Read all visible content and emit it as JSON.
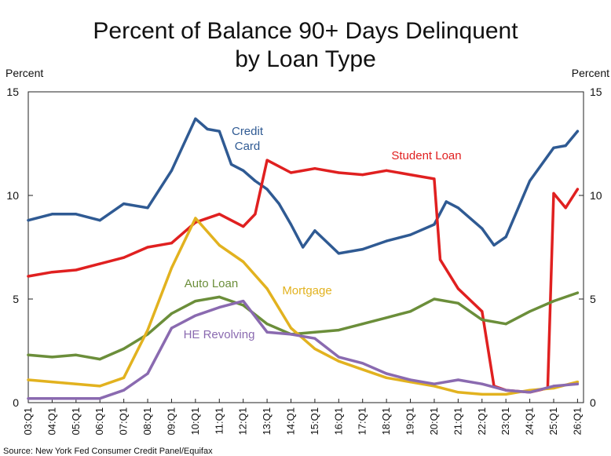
{
  "chart_data": {
    "type": "line",
    "title_lines": [
      "Percent of Balance 90+ Days Delinquent",
      "by Loan Type"
    ],
    "ylabel_left": "Percent",
    "ylabel_right": "Percent",
    "ylim": [
      0,
      15
    ],
    "yticks": [
      0,
      5,
      10,
      15
    ],
    "xlim": [
      "03:Q1",
      "26:Q2"
    ],
    "xticks": [
      "03:Q1",
      "04:Q1",
      "05:Q1",
      "06:Q1",
      "07:Q1",
      "08:Q1",
      "09:Q1",
      "10:Q1",
      "11:Q1",
      "12:Q1",
      "13:Q1",
      "14:Q1",
      "15:Q1",
      "16:Q1",
      "17:Q1",
      "18:Q1",
      "19:Q1",
      "20:Q1",
      "21:Q1",
      "22:Q1",
      "23:Q1",
      "24:Q1",
      "25:Q1",
      "26:Q1"
    ],
    "grid": false,
    "source": "Source: New York Fed Consumer Credit Panel/Equifax",
    "series": [
      {
        "name": "Credit Card",
        "label_lines": [
          "Credit",
          "Card"
        ],
        "color": "#2f5a93",
        "points": [
          [
            "03:Q1",
            8.8
          ],
          [
            "04:Q1",
            9.1
          ],
          [
            "05:Q1",
            9.1
          ],
          [
            "06:Q1",
            8.8
          ],
          [
            "07:Q1",
            9.6
          ],
          [
            "08:Q1",
            9.4
          ],
          [
            "09:Q1",
            11.2
          ],
          [
            "10:Q1",
            13.7
          ],
          [
            "10:Q3",
            13.2
          ],
          [
            "11:Q1",
            13.1
          ],
          [
            "11:Q3",
            11.5
          ],
          [
            "12:Q1",
            11.2
          ],
          [
            "12:Q3",
            10.7
          ],
          [
            "13:Q1",
            10.3
          ],
          [
            "13:Q3",
            9.6
          ],
          [
            "14:Q1",
            8.6
          ],
          [
            "14:Q3",
            7.5
          ],
          [
            "15:Q1",
            8.3
          ],
          [
            "16:Q1",
            7.2
          ],
          [
            "17:Q1",
            7.4
          ],
          [
            "18:Q1",
            7.8
          ],
          [
            "19:Q1",
            8.1
          ],
          [
            "20:Q1",
            8.6
          ],
          [
            "20:Q3",
            9.7
          ],
          [
            "21:Q1",
            9.4
          ],
          [
            "22:Q1",
            8.4
          ],
          [
            "22:Q3",
            7.6
          ],
          [
            "23:Q1",
            8.0
          ],
          [
            "24:Q1",
            10.7
          ],
          [
            "25:Q1",
            12.3
          ],
          [
            "25:Q3",
            12.4
          ],
          [
            "26:Q1",
            13.1
          ]
        ]
      },
      {
        "name": "Student Loan",
        "label_lines": [
          "Student Loan"
        ],
        "color": "#e02020",
        "points": [
          [
            "03:Q1",
            6.1
          ],
          [
            "04:Q1",
            6.3
          ],
          [
            "05:Q1",
            6.4
          ],
          [
            "06:Q1",
            6.7
          ],
          [
            "07:Q1",
            7.0
          ],
          [
            "08:Q1",
            7.5
          ],
          [
            "09:Q1",
            7.7
          ],
          [
            "10:Q1",
            8.7
          ],
          [
            "11:Q1",
            9.1
          ],
          [
            "12:Q1",
            8.5
          ],
          [
            "12:Q3",
            9.1
          ],
          [
            "13:Q1",
            11.7
          ],
          [
            "14:Q1",
            11.1
          ],
          [
            "15:Q1",
            11.3
          ],
          [
            "16:Q1",
            11.1
          ],
          [
            "17:Q1",
            11.0
          ],
          [
            "18:Q1",
            11.2
          ],
          [
            "19:Q1",
            11.0
          ],
          [
            "20:Q1",
            10.8
          ],
          [
            "20:Q2",
            6.9
          ],
          [
            "21:Q1",
            5.5
          ],
          [
            "22:Q1",
            4.4
          ],
          [
            "22:Q3",
            0.8
          ],
          [
            "23:Q1",
            0.6
          ],
          [
            "24:Q1",
            0.5
          ],
          [
            "24:Q4",
            0.7
          ],
          [
            "25:Q1",
            10.1
          ],
          [
            "25:Q3",
            9.4
          ],
          [
            "26:Q1",
            10.3
          ]
        ]
      },
      {
        "name": "Auto Loan",
        "label_lines": [
          "Auto Loan"
        ],
        "color": "#6b8e3a",
        "points": [
          [
            "03:Q1",
            2.3
          ],
          [
            "04:Q1",
            2.2
          ],
          [
            "05:Q1",
            2.3
          ],
          [
            "06:Q1",
            2.1
          ],
          [
            "07:Q1",
            2.6
          ],
          [
            "08:Q1",
            3.3
          ],
          [
            "09:Q1",
            4.3
          ],
          [
            "10:Q1",
            4.9
          ],
          [
            "11:Q1",
            5.1
          ],
          [
            "12:Q1",
            4.7
          ],
          [
            "13:Q1",
            3.8
          ],
          [
            "14:Q1",
            3.3
          ],
          [
            "15:Q1",
            3.4
          ],
          [
            "16:Q1",
            3.5
          ],
          [
            "17:Q1",
            3.8
          ],
          [
            "18:Q1",
            4.1
          ],
          [
            "19:Q1",
            4.4
          ],
          [
            "20:Q1",
            5.0
          ],
          [
            "21:Q1",
            4.8
          ],
          [
            "22:Q1",
            4.0
          ],
          [
            "23:Q1",
            3.8
          ],
          [
            "24:Q1",
            4.4
          ],
          [
            "25:Q1",
            4.9
          ],
          [
            "26:Q1",
            5.3
          ]
        ]
      },
      {
        "name": "Mortgage",
        "label_lines": [
          "Mortgage"
        ],
        "color": "#e2b21f",
        "points": [
          [
            "03:Q1",
            1.1
          ],
          [
            "04:Q1",
            1.0
          ],
          [
            "05:Q1",
            0.9
          ],
          [
            "06:Q1",
            0.8
          ],
          [
            "07:Q1",
            1.2
          ],
          [
            "08:Q1",
            3.5
          ],
          [
            "09:Q1",
            6.5
          ],
          [
            "10:Q1",
            8.9
          ],
          [
            "11:Q1",
            7.6
          ],
          [
            "12:Q1",
            6.8
          ],
          [
            "13:Q1",
            5.5
          ],
          [
            "14:Q1",
            3.6
          ],
          [
            "15:Q1",
            2.6
          ],
          [
            "16:Q1",
            2.0
          ],
          [
            "17:Q1",
            1.6
          ],
          [
            "18:Q1",
            1.2
          ],
          [
            "19:Q1",
            1.0
          ],
          [
            "20:Q1",
            0.8
          ],
          [
            "21:Q1",
            0.5
          ],
          [
            "22:Q1",
            0.4
          ],
          [
            "23:Q1",
            0.4
          ],
          [
            "24:Q1",
            0.6
          ],
          [
            "25:Q1",
            0.7
          ],
          [
            "26:Q1",
            1.0
          ]
        ]
      },
      {
        "name": "HE Revolving",
        "label_lines": [
          "HE Revolving"
        ],
        "color": "#8a6ab0",
        "points": [
          [
            "03:Q1",
            0.2
          ],
          [
            "04:Q1",
            0.2
          ],
          [
            "05:Q1",
            0.2
          ],
          [
            "06:Q1",
            0.2
          ],
          [
            "07:Q1",
            0.6
          ],
          [
            "08:Q1",
            1.4
          ],
          [
            "09:Q1",
            3.6
          ],
          [
            "10:Q1",
            4.2
          ],
          [
            "11:Q1",
            4.6
          ],
          [
            "12:Q1",
            4.9
          ],
          [
            "13:Q1",
            3.4
          ],
          [
            "14:Q1",
            3.3
          ],
          [
            "15:Q1",
            3.1
          ],
          [
            "16:Q1",
            2.2
          ],
          [
            "17:Q1",
            1.9
          ],
          [
            "18:Q1",
            1.4
          ],
          [
            "19:Q1",
            1.1
          ],
          [
            "20:Q1",
            0.9
          ],
          [
            "21:Q1",
            1.1
          ],
          [
            "22:Q1",
            0.9
          ],
          [
            "23:Q1",
            0.6
          ],
          [
            "24:Q1",
            0.5
          ],
          [
            "25:Q1",
            0.8
          ],
          [
            "26:Q1",
            0.9
          ]
        ]
      }
    ]
  }
}
